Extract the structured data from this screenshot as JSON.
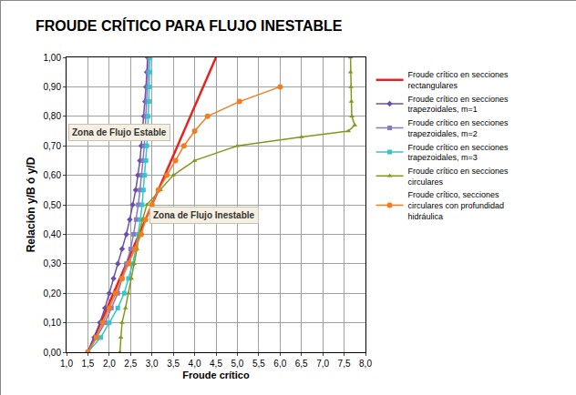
{
  "chart_data": {
    "type": "line",
    "title": "FROUDE CRÍTICO PARA FLUJO INESTABLE",
    "x_label": "Froude crítico",
    "y_label": "Relación y/B ó y/D",
    "xlim": [
      1.0,
      8.0
    ],
    "ylim": [
      0.0,
      1.0
    ],
    "xticks": [
      {
        "value": 1.0,
        "label": "1,0"
      },
      {
        "value": 1.5,
        "label": "1,5"
      },
      {
        "value": 2.0,
        "label": "2,0"
      },
      {
        "value": 2.5,
        "label": "2,5"
      },
      {
        "value": 3.0,
        "label": "3,0"
      },
      {
        "value": 3.5,
        "label": "3,5"
      },
      {
        "value": 4.0,
        "label": "4,0"
      },
      {
        "value": 4.5,
        "label": "4,5"
      },
      {
        "value": 5.0,
        "label": "5,0"
      },
      {
        "value": 5.5,
        "label": "5,5"
      },
      {
        "value": 6.0,
        "label": "6,0"
      },
      {
        "value": 6.5,
        "label": "6,5"
      },
      {
        "value": 7.0,
        "label": "7,0"
      },
      {
        "value": 7.5,
        "label": "7,5"
      },
      {
        "value": 8.0,
        "label": "8,0"
      }
    ],
    "yticks": [
      {
        "value": 0.0,
        "label": "0,00"
      },
      {
        "value": 0.1,
        "label": "0,10"
      },
      {
        "value": 0.2,
        "label": "0,20"
      },
      {
        "value": 0.3,
        "label": "0,30"
      },
      {
        "value": 0.4,
        "label": "0,40"
      },
      {
        "value": 0.5,
        "label": "0,50"
      },
      {
        "value": 0.6,
        "label": "0,60"
      },
      {
        "value": 0.7,
        "label": "0,70"
      },
      {
        "value": 0.8,
        "label": "0,80"
      },
      {
        "value": 0.9,
        "label": "0,90"
      },
      {
        "value": 1.0,
        "label": "1,00"
      }
    ],
    "grid": true,
    "legend": "right",
    "annotations": [
      "Zona de Flujo Estable",
      "Zona de Flujo Inestable"
    ],
    "series": [
      {
        "name": "Froude crítico en secciones rectangulares",
        "color": "#e8231f",
        "marker": "none",
        "line_style": "solid",
        "x": [
          1.5,
          4.5
        ],
        "y": [
          0.0,
          1.0
        ]
      },
      {
        "name": "Froude crítico en secciones trapezoidales, m=1",
        "color": "#6a50a8",
        "marker": "diamond",
        "line_style": "solid",
        "x": [
          1.5,
          1.65,
          1.78,
          1.9,
          2.0,
          2.1,
          2.2,
          2.3,
          2.4,
          2.48,
          2.55,
          2.62,
          2.67,
          2.72,
          2.75,
          2.78,
          2.81,
          2.84,
          2.86,
          2.88,
          2.9
        ],
        "y": [
          0.0,
          0.05,
          0.1,
          0.15,
          0.2,
          0.25,
          0.3,
          0.35,
          0.4,
          0.45,
          0.5,
          0.55,
          0.6,
          0.65,
          0.7,
          0.75,
          0.8,
          0.85,
          0.9,
          0.95,
          1.0
        ]
      },
      {
        "name": "Froude crítico en secciones trapezoidales, m=2",
        "color": "#8878c8",
        "marker": "square",
        "line_style": "solid",
        "x": [
          1.5,
          1.7,
          1.9,
          2.05,
          2.2,
          2.3,
          2.4,
          2.5,
          2.57,
          2.63,
          2.68,
          2.72,
          2.76,
          2.79,
          2.82,
          2.84,
          2.86,
          2.88,
          2.9,
          2.91,
          2.92
        ],
        "y": [
          0.0,
          0.05,
          0.1,
          0.15,
          0.2,
          0.25,
          0.3,
          0.35,
          0.4,
          0.45,
          0.5,
          0.55,
          0.6,
          0.65,
          0.7,
          0.75,
          0.8,
          0.85,
          0.9,
          0.95,
          1.0
        ]
      },
      {
        "name": "Froude crítico en secciones trapezoidales, m=3",
        "color": "#33c6cc",
        "marker": "square",
        "line_style": "solid",
        "x": [
          1.5,
          1.8,
          2.0,
          2.2,
          2.35,
          2.45,
          2.55,
          2.62,
          2.68,
          2.73,
          2.77,
          2.8,
          2.83,
          2.86,
          2.88,
          2.9,
          2.91,
          2.93,
          2.94,
          2.95,
          2.96
        ],
        "y": [
          0.0,
          0.05,
          0.1,
          0.15,
          0.2,
          0.25,
          0.3,
          0.35,
          0.4,
          0.45,
          0.5,
          0.55,
          0.6,
          0.65,
          0.7,
          0.75,
          0.8,
          0.85,
          0.9,
          0.95,
          1.0
        ]
      },
      {
        "name": "Froude crítico en secciones circulares",
        "color": "#7f9a1a",
        "marker": "triangle-up",
        "line_style": "solid",
        "x": [
          2.25,
          2.27,
          2.3,
          2.38,
          2.45,
          2.52,
          2.58,
          2.65,
          2.7,
          2.78,
          2.88,
          3.2,
          3.5,
          4.0,
          5.0,
          6.5,
          7.6,
          7.75,
          7.68,
          7.67,
          7.66,
          7.65,
          7.65
        ],
        "y": [
          0.0,
          0.05,
          0.1,
          0.15,
          0.2,
          0.25,
          0.3,
          0.35,
          0.4,
          0.45,
          0.5,
          0.55,
          0.6,
          0.65,
          0.7,
          0.73,
          0.75,
          0.77,
          0.8,
          0.85,
          0.9,
          0.95,
          1.0
        ]
      },
      {
        "name": "Froude crítico, secciones circulares con profundidad hidráulica",
        "color": "#f47b20",
        "marker": "circle",
        "line_style": "solid",
        "x": [
          1.5,
          1.7,
          1.85,
          2.0,
          2.15,
          2.3,
          2.45,
          2.6,
          2.75,
          2.85,
          3.0,
          3.15,
          3.35,
          3.55,
          3.75,
          4.0,
          4.3,
          5.05,
          6.0
        ],
        "y": [
          0.0,
          0.05,
          0.1,
          0.15,
          0.2,
          0.25,
          0.3,
          0.35,
          0.4,
          0.45,
          0.5,
          0.55,
          0.6,
          0.65,
          0.7,
          0.75,
          0.8,
          0.85,
          0.9
        ]
      }
    ]
  }
}
